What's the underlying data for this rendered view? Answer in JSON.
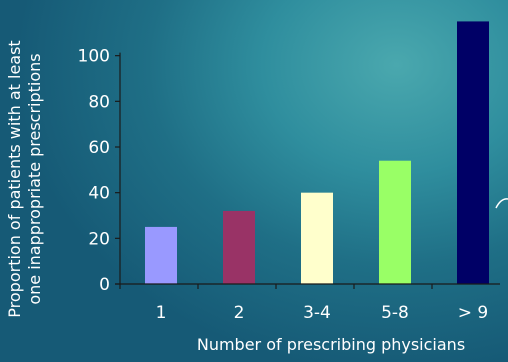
{
  "chart_data": {
    "type": "bar",
    "categories": [
      "1",
      "2",
      "3-4",
      "5-8",
      "> 9"
    ],
    "values": [
      25,
      32,
      40,
      54,
      115
    ],
    "bar_colors": [
      "#9999ff",
      "#993366",
      "#ffffcc",
      "#99ff66",
      "#000066"
    ],
    "xlabel": "Number of prescribing physicians",
    "ylabel_lines": [
      "Proportion of patients with at least",
      "one inappropriate prescriptions"
    ],
    "y_ticks": [
      0,
      20,
      40,
      60,
      80,
      100
    ],
    "ylim": [
      0,
      120
    ],
    "grid": false,
    "legend": "none"
  }
}
